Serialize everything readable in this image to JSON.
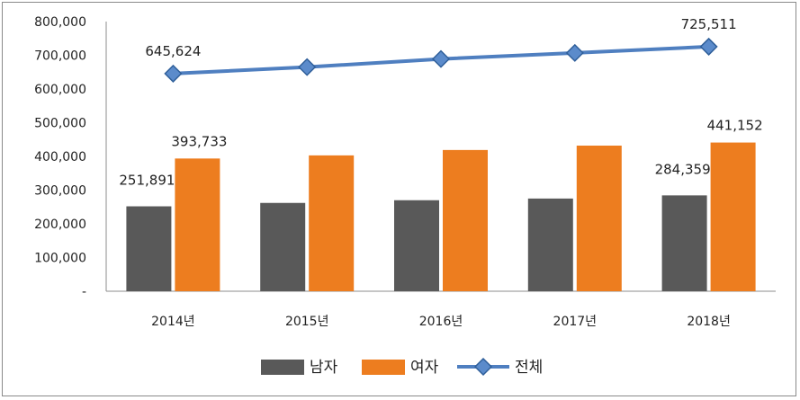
{
  "chart_data": {
    "type": "bar",
    "categories": [
      "2014년",
      "2015년",
      "2016년",
      "2017년",
      "2018년"
    ],
    "series": [
      {
        "name": "남자",
        "type": "bar",
        "color": "#595959",
        "values": [
          251891,
          262000,
          270000,
          275000,
          284359
        ]
      },
      {
        "name": "여자",
        "type": "bar",
        "color": "#ED7D1F",
        "values": [
          393733,
          403000,
          419000,
          432000,
          441152
        ]
      },
      {
        "name": "전체",
        "type": "line",
        "color": "#4F7FC0",
        "marker": "diamond",
        "values": [
          645624,
          665000,
          689000,
          707000,
          725511
        ]
      }
    ],
    "data_labels": [
      {
        "series": 0,
        "index": 0,
        "text": "251,891"
      },
      {
        "series": 0,
        "index": 4,
        "text": "284,359"
      },
      {
        "series": 1,
        "index": 0,
        "text": "393,733"
      },
      {
        "series": 1,
        "index": 4,
        "text": "441,152"
      },
      {
        "series": 2,
        "index": 0,
        "text": "645,624"
      },
      {
        "series": 2,
        "index": 4,
        "text": "725,511"
      }
    ],
    "y_ticks": [
      "-",
      "100,000",
      "200,000",
      "300,000",
      "400,000",
      "500,000",
      "600,000",
      "700,000",
      "800,000"
    ],
    "ylim": [
      0,
      800000
    ],
    "grid": false,
    "legend_position": "bottom"
  }
}
